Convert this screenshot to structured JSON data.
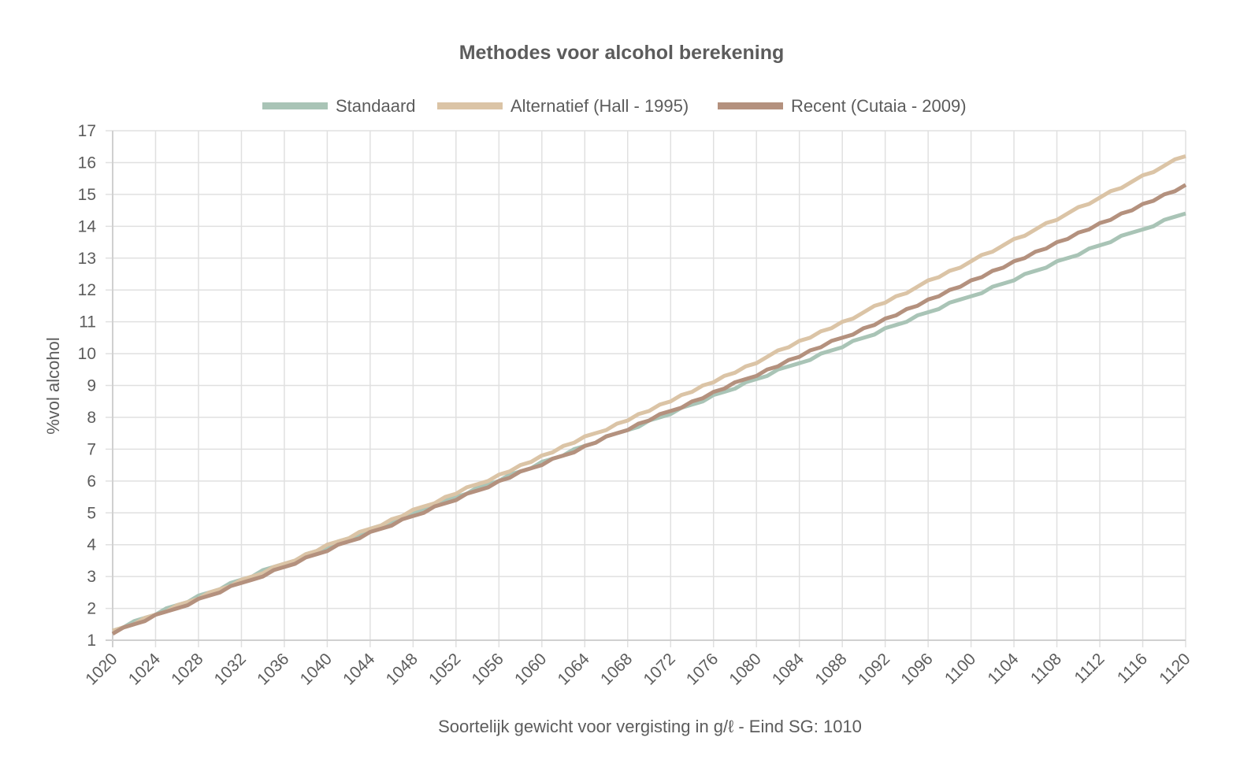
{
  "chart_data": {
    "type": "line",
    "title": "Methodes voor alcohol berekening",
    "xlabel": "Soortelijk gewicht voor vergisting in g/ℓ - Eind SG: 1010",
    "ylabel": "%vol alcohol",
    "xlim": [
      1020,
      1120
    ],
    "ylim": [
      1,
      17
    ],
    "grid": true,
    "legend_position": "top",
    "x_ticks": [
      "1020",
      "1024",
      "1028",
      "1032",
      "1036",
      "1040",
      "1044",
      "1048",
      "1052",
      "1056",
      "1060",
      "1064",
      "1068",
      "1072",
      "1076",
      "1080",
      "1084",
      "1088",
      "1092",
      "1096",
      "1100",
      "1104",
      "1108",
      "1112",
      "1116",
      "1120"
    ],
    "y_ticks": [
      "1",
      "2",
      "3",
      "4",
      "5",
      "6",
      "7",
      "8",
      "9",
      "10",
      "11",
      "12",
      "13",
      "14",
      "15",
      "16",
      "17"
    ],
    "x_start": 1020,
    "x_step": 1,
    "series": [
      {
        "name": "Standaard",
        "color": "#a9c4b6",
        "values": [
          1.3,
          1.4,
          1.6,
          1.7,
          1.8,
          2.0,
          2.1,
          2.2,
          2.4,
          2.5,
          2.6,
          2.8,
          2.9,
          3.0,
          3.2,
          3.3,
          3.4,
          3.5,
          3.7,
          3.8,
          3.9,
          4.1,
          4.2,
          4.3,
          4.5,
          4.6,
          4.7,
          4.9,
          5.0,
          5.1,
          5.3,
          5.4,
          5.5,
          5.6,
          5.8,
          5.9,
          6.0,
          6.2,
          6.3,
          6.4,
          6.6,
          6.7,
          6.8,
          7.0,
          7.1,
          7.2,
          7.4,
          7.5,
          7.6,
          7.7,
          7.9,
          8.0,
          8.1,
          8.3,
          8.4,
          8.5,
          8.7,
          8.8,
          8.9,
          9.1,
          9.2,
          9.3,
          9.5,
          9.6,
          9.7,
          9.8,
          10.0,
          10.1,
          10.2,
          10.4,
          10.5,
          10.6,
          10.8,
          10.9,
          11.0,
          11.2,
          11.3,
          11.4,
          11.6,
          11.7,
          11.8,
          11.9,
          12.1,
          12.2,
          12.3,
          12.5,
          12.6,
          12.7,
          12.9,
          13.0,
          13.1,
          13.3,
          13.4,
          13.5,
          13.7,
          13.8,
          13.9,
          14.0,
          14.2,
          14.3,
          14.4
        ]
      },
      {
        "name": "Alternatief (Hall - 1995)",
        "color": "#dbc4a6",
        "values": [
          1.3,
          1.4,
          1.5,
          1.7,
          1.8,
          1.9,
          2.1,
          2.2,
          2.3,
          2.5,
          2.6,
          2.7,
          2.9,
          3.0,
          3.1,
          3.3,
          3.4,
          3.5,
          3.7,
          3.8,
          4.0,
          4.1,
          4.2,
          4.4,
          4.5,
          4.6,
          4.8,
          4.9,
          5.1,
          5.2,
          5.3,
          5.5,
          5.6,
          5.8,
          5.9,
          6.0,
          6.2,
          6.3,
          6.5,
          6.6,
          6.8,
          6.9,
          7.1,
          7.2,
          7.4,
          7.5,
          7.6,
          7.8,
          7.9,
          8.1,
          8.2,
          8.4,
          8.5,
          8.7,
          8.8,
          9.0,
          9.1,
          9.3,
          9.4,
          9.6,
          9.7,
          9.9,
          10.1,
          10.2,
          10.4,
          10.5,
          10.7,
          10.8,
          11.0,
          11.1,
          11.3,
          11.5,
          11.6,
          11.8,
          11.9,
          12.1,
          12.3,
          12.4,
          12.6,
          12.7,
          12.9,
          13.1,
          13.2,
          13.4,
          13.6,
          13.7,
          13.9,
          14.1,
          14.2,
          14.4,
          14.6,
          14.7,
          14.9,
          15.1,
          15.2,
          15.4,
          15.6,
          15.7,
          15.9,
          16.1,
          16.2
        ]
      },
      {
        "name": "Recent (Cutaia - 2009)",
        "color": "#b4917e",
        "values": [
          1.2,
          1.4,
          1.5,
          1.6,
          1.8,
          1.9,
          2.0,
          2.1,
          2.3,
          2.4,
          2.5,
          2.7,
          2.8,
          2.9,
          3.0,
          3.2,
          3.3,
          3.4,
          3.6,
          3.7,
          3.8,
          4.0,
          4.1,
          4.2,
          4.4,
          4.5,
          4.6,
          4.8,
          4.9,
          5.0,
          5.2,
          5.3,
          5.4,
          5.6,
          5.7,
          5.8,
          6.0,
          6.1,
          6.3,
          6.4,
          6.5,
          6.7,
          6.8,
          6.9,
          7.1,
          7.2,
          7.4,
          7.5,
          7.6,
          7.8,
          7.9,
          8.1,
          8.2,
          8.3,
          8.5,
          8.6,
          8.8,
          8.9,
          9.1,
          9.2,
          9.3,
          9.5,
          9.6,
          9.8,
          9.9,
          10.1,
          10.2,
          10.4,
          10.5,
          10.6,
          10.8,
          10.9,
          11.1,
          11.2,
          11.4,
          11.5,
          11.7,
          11.8,
          12.0,
          12.1,
          12.3,
          12.4,
          12.6,
          12.7,
          12.9,
          13.0,
          13.2,
          13.3,
          13.5,
          13.6,
          13.8,
          13.9,
          14.1,
          14.2,
          14.4,
          14.5,
          14.7,
          14.8,
          15.0,
          15.1,
          15.3
        ]
      }
    ]
  }
}
